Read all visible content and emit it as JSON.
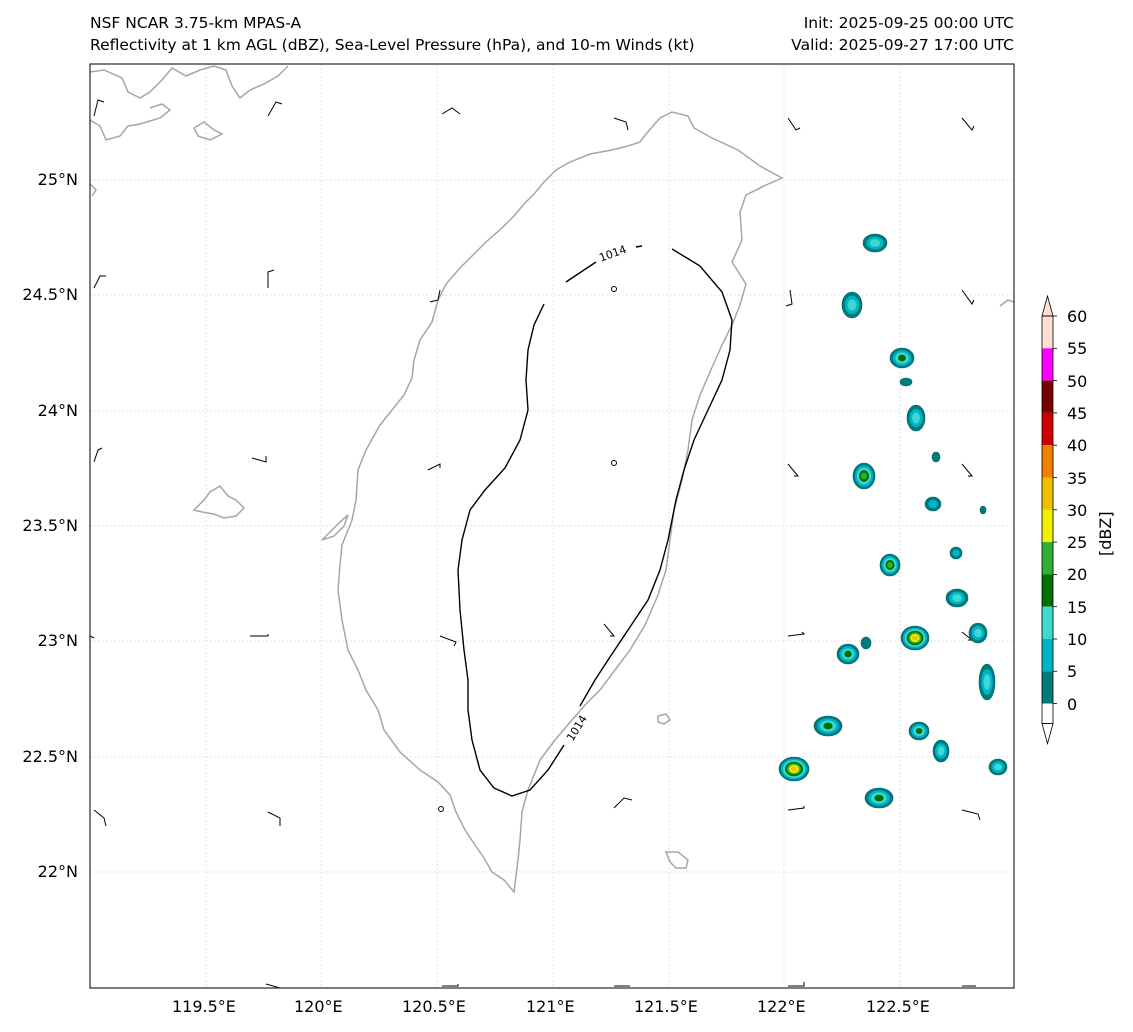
{
  "header": {
    "model_title": "NSF NCAR 3.75-km MPAS-A",
    "field_title": "Reflectivity at 1 km AGL (dBZ), Sea-Level Pressure (hPa), and 10-m Winds (kt)",
    "init_time": "Init: 2025-09-25 00:00 UTC",
    "valid_time": "Valid: 2025-09-27 17:00 UTC"
  },
  "map": {
    "lon_range": [
      119.0,
      122.95
    ],
    "lat_range": [
      21.5,
      25.5
    ],
    "lon_ticks": [
      "119.5°E",
      "120°E",
      "120.5°E",
      "121°E",
      "121.5°E",
      "122°E",
      "122.5°E"
    ],
    "lat_ticks": [
      "25°N",
      "24.5°N",
      "24°N",
      "23.5°N",
      "23°N",
      "22.5°N",
      "22°N"
    ],
    "gridlines": true,
    "coastline_color": "#a6a6a6",
    "isobar_label": "1014"
  },
  "colorbar": {
    "label": "[dBZ]",
    "tick_labels": [
      "0",
      "5",
      "10",
      "15",
      "20",
      "25",
      "30",
      "35",
      "40",
      "45",
      "50",
      "55",
      "60"
    ],
    "colors": [
      "#ffffff",
      "#007b7b",
      "#00b3c8",
      "#40d8d0",
      "#007000",
      "#30b030",
      "#f0f000",
      "#f0c000",
      "#f08000",
      "#d00000",
      "#7a0000",
      "#ff00ff",
      "#fde0d0"
    ]
  }
}
